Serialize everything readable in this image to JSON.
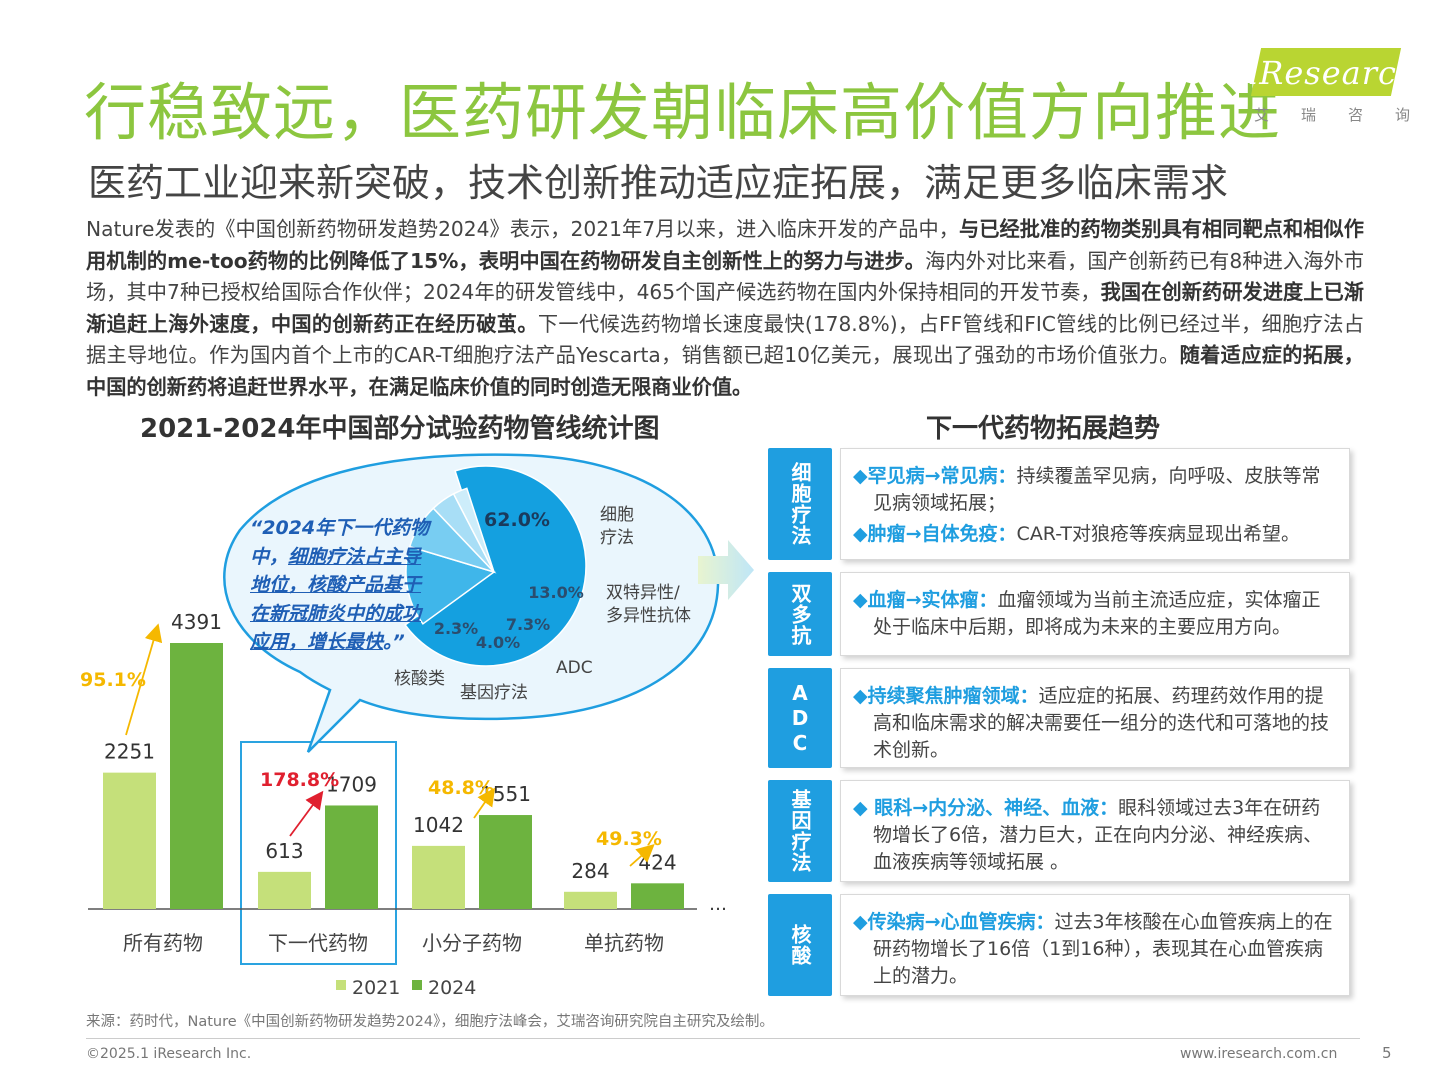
{
  "header": {
    "title": "行稳致远，医药研发朝临床高价值方向推进",
    "subtitle": "医药工业迎来新突破，技术创新推动适应症拓展，满足更多临床需求",
    "logo_word": "iResearch",
    "logo_cn": "艾瑞咨询"
  },
  "intro": {
    "p1": "Nature发表的《中国创新药物研发趋势2024》表示，2021年7月以来，进入临床开发的产品中，",
    "b1": "与已经批准的药物类别具有相同靶点和相似作用机制的me-too药物的比例降低了15%，表明中国在药物研发自主创新性上的努力与进步。",
    "p2": "海内外对比来看，国产创新药已有8种进入海外市场，其中7种已授权给国际合作伙伴；2024年的研发管线中，465个国产候选药物在国内外保持相同的开发节奏，",
    "b2": "我国在创新药研发进度上已渐渐追赶上海外速度，中国的创新药正在经历破茧。",
    "p3": "下一代候选药物增长速度最快(178.8%)，占FF管线和FIC管线的比例已经过半，细胞疗法占据主导地位。作为国内首个上市的CAR-T细胞疗法产品Yescarta，销售额已超10亿美元，展现出了强劲的市场价值张力。",
    "b3": "随着适应症的拓展，中国的创新药将追赶世界水平，在满足临床价值的同时创造无限商业价值。"
  },
  "left_section_title": "2021-2024年中国部分试验药物管线统计图",
  "right_section_title": "下一代药物拓展趋势",
  "callout": {
    "line1": "“2024年下一代药物",
    "line2": "中，",
    "line2u": "细胞疗法占主导",
    "line3u": "地位，核酸产品基于",
    "line4u": "在新冠肺炎中的成功",
    "line5u": "应用，增长最快",
    "line5end": "。”"
  },
  "chart_data": [
    {
      "type": "bar",
      "categories": [
        "所有药物",
        "下一代药物",
        "小分子药物",
        "单抗药物"
      ],
      "series": [
        {
          "name": "2021",
          "values": [
            2251,
            613,
            1042,
            284
          ],
          "color": "#c5e07a"
        },
        {
          "name": "2024",
          "values": [
            4391,
            1709,
            1551,
            424
          ],
          "color": "#6db33f"
        }
      ],
      "growth_labels": [
        "95.1%",
        "178.8%",
        "48.8%",
        "49.3%"
      ],
      "growth_colors": [
        "#f5b800",
        "#e0202f",
        "#f5b800",
        "#f5b800"
      ],
      "ellipsis": "…",
      "legend": "bottom"
    },
    {
      "type": "pie",
      "labels": [
        "细胞疗法",
        "双特异性/多异性抗体",
        "ADC",
        "基因疗法",
        "核酸类"
      ],
      "values": [
        62.0,
        13.0,
        7.3,
        4.0,
        2.3
      ],
      "value_labels": [
        "62.0%",
        "13.0%",
        "7.3%",
        "4.0%",
        "2.3%"
      ],
      "colors": [
        "#14a0e0",
        "#3fb6ea",
        "#78cdf2",
        "#a8def6",
        "#cdedfa"
      ]
    }
  ],
  "rows": [
    {
      "tag": "细胞疗法",
      "items": [
        {
          "head": "罕见病→常见病：",
          "text": "持续覆盖罕见病，向呼吸、皮肤等常见病领域拓展；"
        },
        {
          "head": "肿瘤→自体免疫：",
          "text": "CAR-T对狼疮等疾病显现出希望。"
        }
      ]
    },
    {
      "tag": "双多抗",
      "items": [
        {
          "head": "血瘤→实体瘤：",
          "text": "血瘤领域为当前主流适应症，实体瘤正处于临床中后期，即将成为未来的主要应用方向。"
        }
      ]
    },
    {
      "tag": "ADC",
      "items": [
        {
          "head": "持续聚焦肿瘤领域：",
          "text": "适应症的拓展、药理药效作用的提高和临床需求的解决需要任一组分的迭代和可落地的技术创新。"
        }
      ]
    },
    {
      "tag": "基因疗法",
      "items": [
        {
          "head": " 眼科→内分泌、神经、血液：",
          "text": "眼科领域过去3年在研药物增长了6倍，潜力巨大，正在向内分泌、神经疾病、血液疾病等领域拓展 。"
        }
      ]
    },
    {
      "tag": "核酸",
      "items": [
        {
          "head": "传染病→心血管疾病：",
          "text": "过去3年核酸在心血管疾病上的在研药物增长了16倍（1到16种），表现其在心血管疾病上的潜力。"
        }
      ]
    }
  ],
  "footer": {
    "source": "来源：药时代，Nature《中国创新药物研发趋势2024》，细胞疗法峰会，艾瑞咨询研究院自主研究及绘制。",
    "copyright": "©2025.1 iResearch Inc.",
    "website": "www.iresearch.com.cn",
    "page": "5"
  }
}
